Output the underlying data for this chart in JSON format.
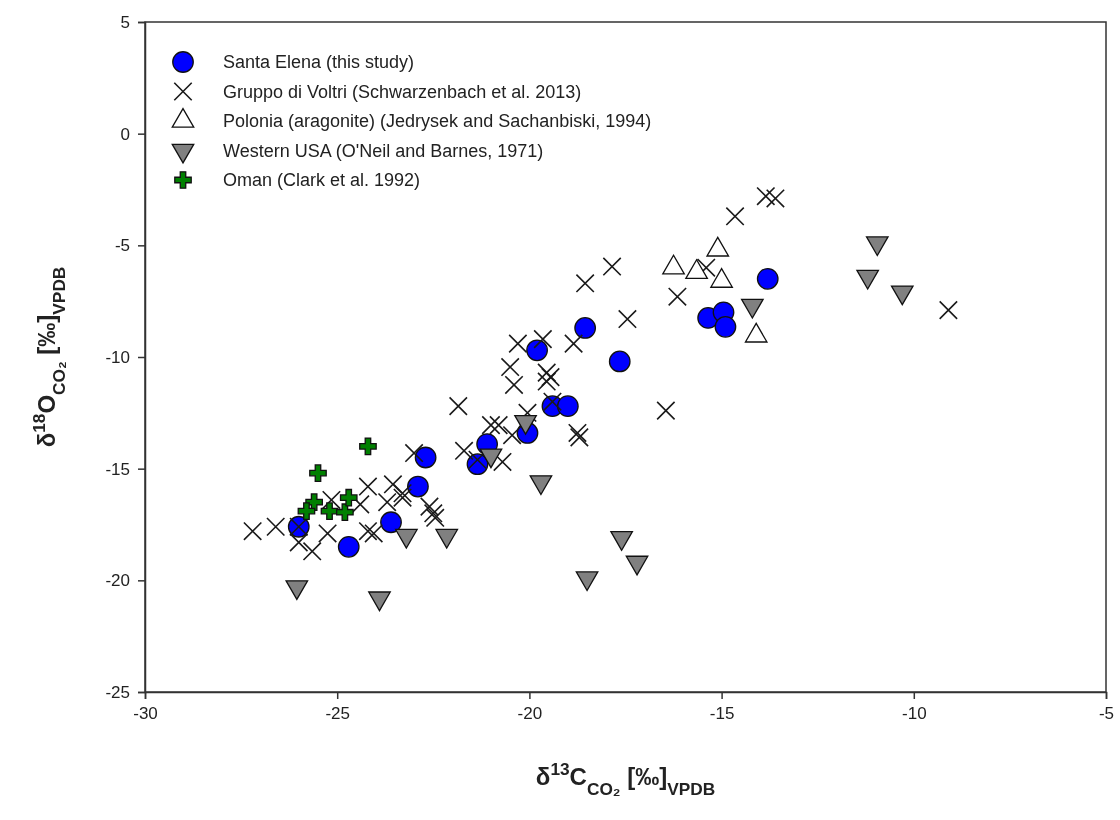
{
  "chart_data": {
    "type": "scatter",
    "xlabel": "δ$^{13}$C$_{CO₂}$ [‰]$_{VPDB}$",
    "ylabel": "δ$^{18}$O$_{CO₂}$ [‰]$_{VPDB}$",
    "xlim": [
      -30,
      -5
    ],
    "xticks": [
      -30,
      -25,
      -20,
      -15,
      -10,
      -5
    ],
    "ylim": [
      -25,
      5
    ],
    "yticks": [
      -25,
      -20,
      -15,
      -10,
      -5,
      0,
      5
    ],
    "grid": false,
    "legend": "top left",
    "series": [
      {
        "name": "Santa Elena (this study)",
        "color": "#0000ff",
        "marker": "circle",
        "x": [
          -26.0,
          -24.7,
          -23.6,
          -22.9,
          -22.7,
          -18.55,
          -19.8,
          -17.65,
          -19.4,
          -19.0,
          -20.05,
          -21.1,
          -21.35,
          -13.8,
          -15.35,
          -14.95,
          -14.9
        ],
        "values": [
          -17.6,
          -18.5,
          -17.4,
          -15.8,
          -14.5,
          -8.7,
          -9.7,
          -10.2,
          -12.2,
          -12.2,
          -13.4,
          -13.9,
          -14.8,
          -6.5,
          -8.25,
          -8.0,
          -8.65
        ]
      },
      {
        "name": "Gruppo di Voltri  (Schwarzenbach et al. 2013)",
        "color": "#1a1a1a",
        "marker": "x",
        "x": [
          -27.2,
          -26.6,
          -26.0,
          -25.65,
          -26.0,
          -25.25,
          -25.15,
          -24.2,
          -24.4,
          -24.05,
          -24.2,
          -23.55,
          -23.3,
          -23.0,
          -22.6,
          -22.5,
          -23.7,
          -22.45,
          -23.3,
          -20.3,
          -19.65,
          -18.85,
          -20.5,
          -20.4,
          -19.55,
          -19.45,
          -19.55,
          -21.85,
          -21.0,
          -20.8,
          -20.45,
          -21.7,
          -21.35,
          -20.7,
          -20.05,
          -19.4,
          -18.75,
          -18.7,
          -16.45,
          -17.45,
          -14.65,
          -13.85,
          -13.6,
          -17.85,
          -18.55,
          -16.15,
          -15.4,
          -9.1
        ],
        "values": [
          -17.8,
          -17.6,
          -17.6,
          -18.7,
          -18.3,
          -17.9,
          -16.4,
          -15.8,
          -16.6,
          -17.9,
          -17.8,
          -15.7,
          -16.3,
          -14.3,
          -16.7,
          -17.0,
          -16.5,
          -17.2,
          -16.1,
          -9.4,
          -9.2,
          -9.4,
          -10.45,
          -11.25,
          -10.7,
          -10.9,
          -11.1,
          -12.2,
          -13.05,
          -13.05,
          -13.5,
          -14.2,
          -14.6,
          -14.7,
          -12.5,
          -12.0,
          -13.4,
          -13.6,
          -12.4,
          -8.3,
          -3.7,
          -2.8,
          -2.9,
          -5.95,
          -6.7,
          -7.3,
          -6.0,
          -7.9
        ]
      },
      {
        "name": "Polonia (aragonite) (Jedrysek and Sachanbiski, 1994)",
        "color": "#ffffff",
        "marker": "triangle",
        "x": [
          -15.1,
          -16.25,
          -15.65,
          -15.0,
          -14.1
        ],
        "values": [
          -5.2,
          -6.0,
          -6.2,
          -6.6,
          -9.05
        ]
      },
      {
        "name": "Western USA (O'Neil and Barnes, 1971)",
        "color": "#808080",
        "marker": "triangle-down",
        "x": [
          -26.05,
          -23.9,
          -23.2,
          -22.15,
          -20.1,
          -21.0,
          -19.7,
          -17.6,
          -17.2,
          -18.5,
          -14.2,
          -10.95,
          -11.2,
          -10.3
        ],
        "values": [
          -20.3,
          -20.8,
          -18.0,
          -18.0,
          -12.9,
          -14.4,
          -15.6,
          -18.1,
          -19.2,
          -19.9,
          -7.7,
          -4.9,
          -6.4,
          -7.1
        ]
      },
      {
        "name": "Oman (Clark et al. 1992)",
        "color": "#008000",
        "marker": "plus",
        "x": [
          -24.2,
          -25.5,
          -25.6,
          -25.8,
          -25.2,
          -24.8,
          -24.7
        ],
        "values": [
          -14.0,
          -15.2,
          -16.5,
          -16.9,
          -16.9,
          -16.95,
          -16.3
        ]
      }
    ]
  }
}
